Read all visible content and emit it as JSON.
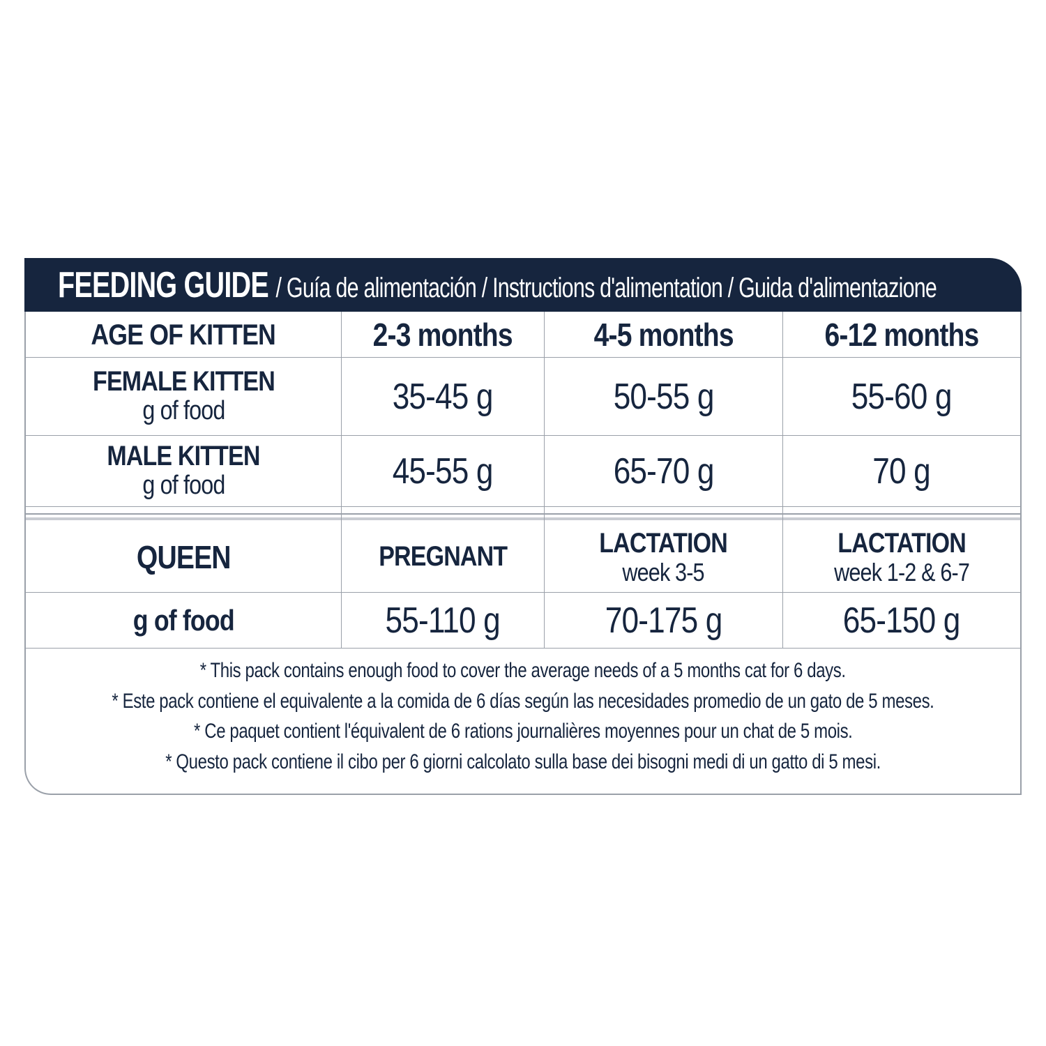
{
  "colors": {
    "navy": "#16253e",
    "grid_line": "#9aa0a9",
    "light_rule": "#c9ccd2",
    "background": "#ffffff"
  },
  "header": {
    "title": "FEEDING GUIDE",
    "subtitle": "/ Guía de alimentación / Instructions d'alimentation / Guida d'alimentazione"
  },
  "kitten_table": {
    "header_row": {
      "label": "AGE OF KITTEN",
      "columns": [
        "2-3 months",
        "4-5 months",
        "6-12 months"
      ]
    },
    "rows": [
      {
        "label": "FEMALE KITTEN",
        "sublabel": "g of food",
        "values": [
          "35-45 g",
          "50-55 g",
          "55-60 g"
        ]
      },
      {
        "label": "MALE KITTEN",
        "sublabel": "g of food",
        "values": [
          "45-55 g",
          "65-70 g",
          "70 g"
        ]
      }
    ]
  },
  "queen_table": {
    "header_row": {
      "label": "QUEEN",
      "columns": [
        {
          "title": "PREGNANT",
          "subtitle": ""
        },
        {
          "title": "LACTATION",
          "subtitle": "week 3-5"
        },
        {
          "title": "LACTATION",
          "subtitle": "week 1-2 & 6-7"
        }
      ]
    },
    "row": {
      "label": "g of food",
      "values": [
        "55-110 g",
        "70-175 g",
        "65-150 g"
      ]
    }
  },
  "footnotes": [
    "* This pack contains enough food to cover the average needs of a 5 months cat for 6 days.",
    "* Este pack contiene el equivalente a la comida de 6 días según las necesidades promedio de un gato de 5 meses.",
    "* Ce paquet contient l'équivalent de 6 rations journalières moyennes pour un chat de 5 mois.",
    "* Questo pack contiene il cibo per 6 giorni calcolato sulla base dei bisogni medi di un gatto di 5 mesi."
  ]
}
